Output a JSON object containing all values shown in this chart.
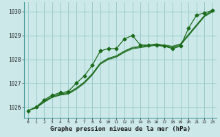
{
  "title": "Graphe pression niveau de la mer (hPa)",
  "bg_color": "#cce8e8",
  "grid_color": "#99cccc",
  "line_color": "#1a6b1a",
  "x_ticks": [
    0,
    1,
    2,
    3,
    4,
    5,
    6,
    7,
    8,
    9,
    10,
    11,
    12,
    13,
    14,
    15,
    16,
    17,
    18,
    19,
    20,
    21,
    22,
    23
  ],
  "y_ticks": [
    1026,
    1027,
    1028,
    1029,
    1030
  ],
  "ylim": [
    1025.55,
    1030.4
  ],
  "xlim": [
    -0.5,
    23.5
  ],
  "main_series": [
    1025.85,
    1026.0,
    1026.3,
    1026.5,
    1026.6,
    1026.65,
    1027.0,
    1027.3,
    1027.75,
    1028.35,
    1028.45,
    1028.45,
    1028.85,
    1029.0,
    1028.6,
    1028.6,
    1028.6,
    1028.55,
    1028.45,
    1028.55,
    1029.3,
    1029.85,
    1029.95,
    1030.05
  ],
  "line2": [
    1025.85,
    1026.0,
    1026.25,
    1026.45,
    1026.55,
    1026.6,
    1026.8,
    1027.05,
    1027.4,
    1027.85,
    1028.05,
    1028.15,
    1028.35,
    1028.5,
    1028.55,
    1028.6,
    1028.65,
    1028.6,
    1028.55,
    1028.65,
    1029.05,
    1029.45,
    1029.85,
    1030.05
  ],
  "line3": [
    1025.85,
    1025.98,
    1026.22,
    1026.42,
    1026.52,
    1026.57,
    1026.77,
    1027.02,
    1027.37,
    1027.82,
    1028.02,
    1028.12,
    1028.32,
    1028.47,
    1028.52,
    1028.57,
    1028.62,
    1028.57,
    1028.52,
    1028.62,
    1029.02,
    1029.42,
    1029.82,
    1030.02
  ],
  "line4": [
    1025.85,
    1025.96,
    1026.2,
    1026.4,
    1026.5,
    1026.54,
    1026.74,
    1026.99,
    1027.34,
    1027.79,
    1027.99,
    1028.09,
    1028.29,
    1028.44,
    1028.49,
    1028.54,
    1028.59,
    1028.54,
    1028.49,
    1028.59,
    1028.99,
    1029.39,
    1029.79,
    1029.99
  ]
}
